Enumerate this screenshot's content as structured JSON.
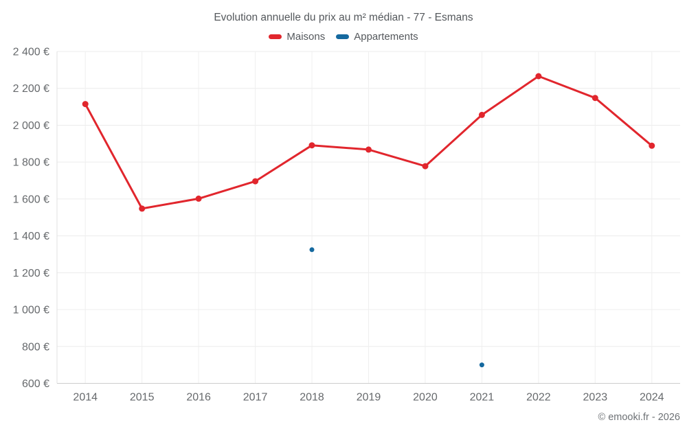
{
  "chart": {
    "title": "Evolution annuelle du prix au m² médian - 77 - Esmans",
    "copyright": "© emooki.fr - 2026"
  },
  "chart_data": {
    "type": "line",
    "title": "Evolution annuelle du prix au m² médian - 77 - Esmans",
    "xlabel": "",
    "ylabel": "",
    "categories": [
      "2014",
      "2015",
      "2016",
      "2017",
      "2018",
      "2019",
      "2020",
      "2021",
      "2022",
      "2023",
      "2024"
    ],
    "series": [
      {
        "name": "Maisons",
        "color": "#e1262d",
        "type": "line-with-markers",
        "marker_radius": 4.5,
        "line": true,
        "values": [
          2115,
          1548,
          1602,
          1696,
          1891,
          1868,
          1778,
          2056,
          2266,
          2148,
          1889
        ]
      },
      {
        "name": "Appartements",
        "color": "#15699f",
        "type": "markers-only",
        "marker_radius": 3.5,
        "line": false,
        "values": [
          null,
          null,
          null,
          null,
          1325,
          null,
          null,
          700,
          null,
          null,
          null
        ]
      }
    ],
    "ylim": [
      600,
      2400
    ],
    "ytick_step": 200,
    "ytick_suffix": " €",
    "grid": true,
    "legend_position": "top-center"
  }
}
